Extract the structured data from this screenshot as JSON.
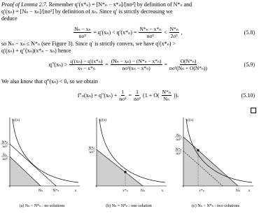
{
  "proof_label": "Proof of Lemma 2.7.",
  "blocks": [
    {
      "text": "Remember q′(x*ₙ) = [N*ₙ − x*ₙ]/[nσ²] by definition of N*ₙ and"
    },
    {
      "text": "q′(xₙ) = [Nₙ − xₙ]/[nσ²] by definition of xₙ. Since q′ is strictly decreasing we"
    },
    {
      "text": "deduce"
    },
    {
      "eq": [
        {
          "num": "Nₙ − xₙ",
          "den": "nσ²"
        },
        "= q′(xₙ) < q′(x*ₙ) =",
        {
          "num": "N*ₙ − x*ₙ",
          "den": "nσ²"
        },
        "<",
        {
          "num": "N*ₙ",
          "den": "2σ²"
        },
        ","
      ],
      "tag": "(5.8)"
    },
    {
      "text": "so Nₙ − xₙ ≤ N*ₙ (see Figure 3). Since q′ is strictly convex, we have q′(x*ₙ) >"
    },
    {
      "text": "q′(xₙ) + q″(xₙ)(x*ₙ − xₙ) hence"
    },
    {
      "eq": [
        "q″(xₙ) >",
        {
          "num": "q′(xₙ) − q′(x*ₙ)",
          "den": "xₙ − x*ₙ"
        },
        "=",
        {
          "num": "(Nₙ − xₙ) − (N*ₙ − x*ₙ)",
          "den": "nσ²(xₙ − x*ₙ)"
        },
        "=",
        {
          "num": "O(N*ₙ)",
          "den": "nσ²(Nₙ + O(N*ₙ))"
        }
      ],
      "tag": "(5.9)"
    },
    {
      "text": "We also know that q‴(xₙ) < 0, so we obtain"
    },
    {
      "eq": [
        "f″ₙ(xₙ) = q″(xₙ) +",
        {
          "num": "1",
          "den": "nσ²"
        },
        "=",
        {
          "num": "1",
          "den": "nσ²"
        },
        "(1 + O(",
        {
          "num": "N*ₙ",
          "den": "Nₙ"
        },
        "))."
      ],
      "tag": "(5.10)"
    }
  ],
  "figures": [
    {
      "y_label": "q′(x)",
      "y_ticks": [
        {
          "num": "N*ₙ",
          "den": "nσ²"
        },
        {
          "num": "Nₙ",
          "den": "nσ²"
        }
      ],
      "x_ticks": [
        "Nₙ",
        "N*ₙ",
        "x"
      ],
      "caption": "(a) Nₙ < N*ₙ : no solutions"
    },
    {
      "y_label": "q′(x)",
      "y_ticks": [
        {
          "num": "N*ₙ",
          "den": "nσ²"
        }
      ],
      "x_ticks": [
        "x*ₙ",
        "Nₙ",
        "x"
      ],
      "caption": "(b) Nₙ = N*ₙ : one solution"
    },
    {
      "y_label": "q′(x)",
      "y_ticks": [
        {
          "num": "Nₙ",
          "den": "nσ²"
        },
        {
          "num": "N*ₙ",
          "den": "nσ²"
        }
      ],
      "x_ticks": [
        "x*ₙ",
        "Nₙ",
        "x"
      ],
      "caption": "(c) Nₙ > N*ₙ : two solutions"
    }
  ]
}
